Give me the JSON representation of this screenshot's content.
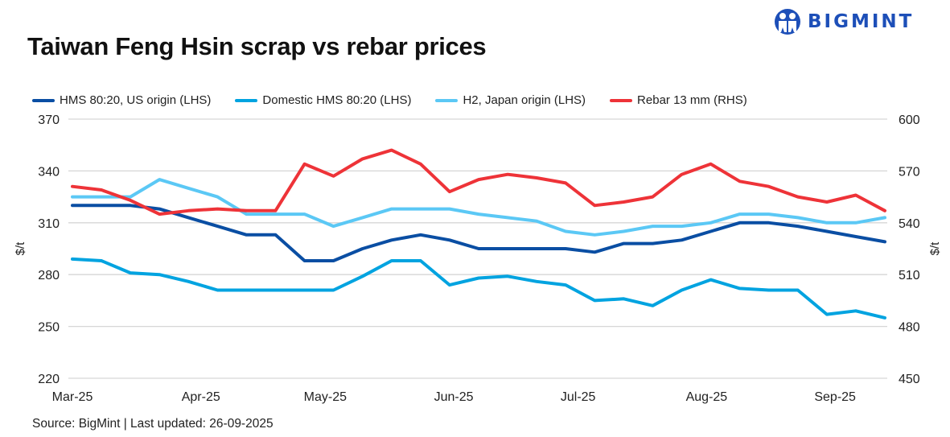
{
  "brand": {
    "name": "BIGMINT",
    "color": "#1d4fb8"
  },
  "source": "Source: BigMint |  Last updated: 26-09-2025",
  "chart_data": {
    "type": "line",
    "title": "Taiwan Feng Hsin scrap vs rebar prices",
    "ylabel": "$/t",
    "y2label": "$/t",
    "ylim": [
      220,
      370
    ],
    "y2lim": [
      450,
      600
    ],
    "yticks": [
      220,
      250,
      280,
      310,
      340,
      370
    ],
    "y2ticks": [
      450,
      480,
      510,
      540,
      570,
      600
    ],
    "grid": true,
    "legend_position": "top",
    "x_tick_labels": [
      "Mar-25",
      "Apr-25",
      "May-25",
      "Jun-25",
      "Jul-25",
      "Aug-25",
      "Sep-25"
    ],
    "x_start": "2025-03-01",
    "x_step_days": 7,
    "series": [
      {
        "name": "HMS 80:20, US origin (LHS)",
        "axis": "left",
        "color": "#0a4ea3",
        "values": [
          320,
          320,
          320,
          318,
          313,
          308,
          303,
          303,
          288,
          288,
          295,
          300,
          303,
          300,
          295,
          295,
          295,
          295,
          293,
          298,
          298,
          300,
          305,
          310,
          310,
          308,
          305,
          302,
          299
        ]
      },
      {
        "name": "Domestic HMS 80:20 (LHS)",
        "axis": "left",
        "color": "#00a3e0",
        "values": [
          289,
          288,
          281,
          280,
          276,
          271,
          271,
          271,
          271,
          271,
          279,
          288,
          288,
          274,
          278,
          279,
          276,
          274,
          265,
          266,
          262,
          271,
          277,
          272,
          271,
          271,
          257,
          259,
          255
        ]
      },
      {
        "name": "H2, Japan origin (LHS)",
        "axis": "left",
        "color": "#5bc8f5",
        "values": [
          325,
          325,
          325,
          335,
          330,
          325,
          315,
          315,
          315,
          308,
          313,
          318,
          318,
          318,
          315,
          313,
          311,
          305,
          303,
          305,
          308,
          308,
          310,
          315,
          315,
          313,
          310,
          310,
          313
        ]
      },
      {
        "name": "Rebar 13 mm (RHS)",
        "axis": "right",
        "color": "#ee3338",
        "values": [
          561,
          559,
          553,
          545,
          547,
          548,
          547,
          547,
          574,
          567,
          577,
          582,
          574,
          558,
          565,
          568,
          566,
          563,
          550,
          552,
          555,
          568,
          574,
          564,
          561,
          555,
          552,
          556,
          547
        ]
      }
    ]
  }
}
